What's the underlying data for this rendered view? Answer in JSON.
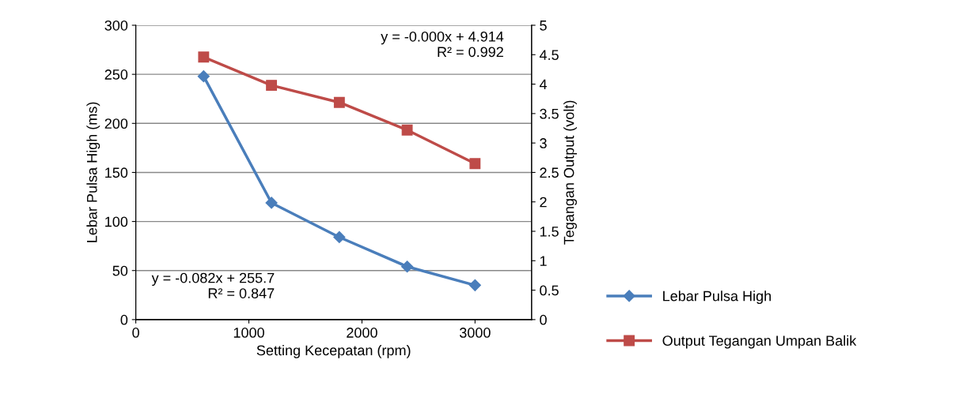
{
  "chart_data": {
    "type": "line",
    "xlabel": "Setting Kecepatan (rpm)",
    "ylabel": "Lebar Pulsa High (ms)",
    "y2label": "Tegangan Output (volt)",
    "x": [
      600,
      1200,
      1800,
      2400,
      3000
    ],
    "series": [
      {
        "name": "Lebar Pulsa High",
        "color": "#4a7ebb",
        "marker": "diamond",
        "values": [
          248,
          119,
          84,
          54,
          35
        ]
      },
      {
        "name": "Output Tegangan Umpan Balik",
        "color": "#be4b48",
        "marker": "square",
        "axis": "y2",
        "values": [
          4.46,
          3.98,
          3.69,
          3.22,
          2.65
        ]
      }
    ],
    "xlim": [
      0,
      3500
    ],
    "xticks": [
      0,
      1000,
      2000,
      3000
    ],
    "ylim": [
      0,
      300
    ],
    "yticks": [
      0,
      50,
      100,
      150,
      200,
      250,
      300
    ],
    "y2lim": [
      0,
      5
    ],
    "y2ticks": [
      0,
      0.5,
      1,
      1.5,
      2,
      2.5,
      3,
      3.5,
      4,
      4.5,
      5
    ],
    "annotations": [
      "y = -0.000x + 4.914\nR² = 0.992",
      "y = -0.082x + 255.7\nR² = 0.847"
    ],
    "grid": "y",
    "legend": "right",
    "line_style": "solid"
  }
}
